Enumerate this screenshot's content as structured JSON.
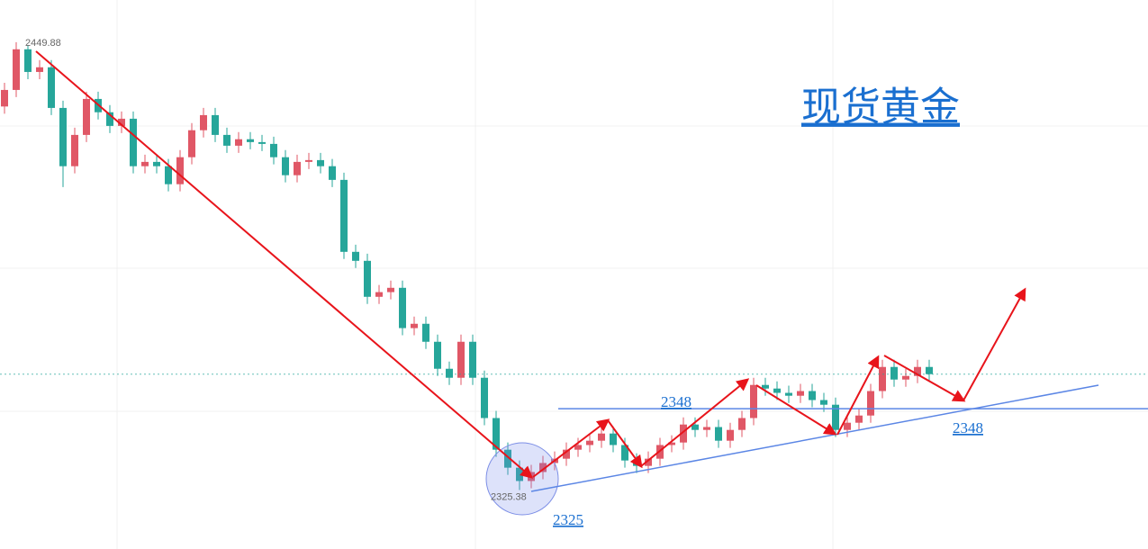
{
  "chart_data": {
    "type": "candlestick",
    "title": "现货黄金",
    "ylim": [
      2309,
      2461.6
    ],
    "up_color": "#e05766",
    "down_color": "#26a69a",
    "open": [
      2432.0,
      2436.6,
      2447.9,
      2441.6,
      2442.9,
      2431.6,
      2415.4,
      2424.1,
      2434.1,
      2430.4,
      2426.6,
      2428.6,
      2415.4,
      2416.6,
      2415.4,
      2410.4,
      2417.9,
      2425.4,
      2429.6,
      2424.1,
      2421.1,
      2422.9,
      2422.1,
      2421.6,
      2417.9,
      2412.9,
      2416.6,
      2417.1,
      2415.4,
      2411.6,
      2391.6,
      2389.1,
      2379.1,
      2380.4,
      2381.6,
      2370.4,
      2371.6,
      2366.6,
      2359.1,
      2356.6,
      2366.6,
      2356.6,
      2345.4,
      2336.6,
      2331.6,
      2327.9,
      2330.4,
      2332.9,
      2334.1,
      2336.6,
      2337.9,
      2339.1,
      2341.1,
      2337.9,
      2333.6,
      2332.1,
      2334.1,
      2337.9,
      2338.6,
      2343.6,
      2342.1,
      2342.9,
      2339.1,
      2342.1,
      2345.4,
      2354.6,
      2353.6,
      2352.4,
      2351.6,
      2352.9,
      2350.4,
      2349.1,
      2342.1,
      2344.1,
      2346.1,
      2352.9,
      2359.6,
      2356.1,
      2357.1,
      2359.6
    ],
    "high": [
      2438.6,
      2449.88,
      2449.0,
      2444.9,
      2444.9,
      2433.6,
      2426.1,
      2436.1,
      2436.1,
      2432.4,
      2430.6,
      2430.6,
      2418.6,
      2418.6,
      2417.4,
      2419.9,
      2427.4,
      2431.6,
      2431.6,
      2426.1,
      2424.9,
      2424.9,
      2424.1,
      2423.6,
      2419.9,
      2418.6,
      2419.1,
      2419.1,
      2417.4,
      2413.6,
      2393.6,
      2391.1,
      2382.4,
      2383.6,
      2383.6,
      2373.6,
      2373.6,
      2368.6,
      2361.1,
      2368.6,
      2368.6,
      2358.6,
      2347.4,
      2338.6,
      2333.6,
      2332.4,
      2334.9,
      2336.1,
      2338.6,
      2339.9,
      2341.1,
      2343.1,
      2343.1,
      2339.9,
      2335.6,
      2336.1,
      2339.9,
      2340.6,
      2345.6,
      2345.6,
      2344.9,
      2344.9,
      2344.1,
      2347.4,
      2356.6,
      2356.6,
      2355.6,
      2354.4,
      2354.9,
      2354.9,
      2352.4,
      2351.1,
      2346.1,
      2348.1,
      2354.9,
      2361.6,
      2361.6,
      2359.1,
      2361.6,
      2361.6
    ],
    "low": [
      2430.0,
      2434.6,
      2439.6,
      2439.6,
      2429.6,
      2409.6,
      2413.4,
      2422.1,
      2428.4,
      2424.6,
      2424.6,
      2413.4,
      2413.4,
      2413.4,
      2408.4,
      2408.4,
      2415.9,
      2423.4,
      2422.1,
      2419.1,
      2419.1,
      2420.1,
      2419.6,
      2415.9,
      2410.9,
      2410.9,
      2414.6,
      2413.4,
      2409.6,
      2389.6,
      2387.1,
      2377.1,
      2377.1,
      2378.4,
      2368.4,
      2368.4,
      2364.6,
      2357.1,
      2354.6,
      2354.6,
      2354.6,
      2343.4,
      2334.6,
      2329.6,
      2325.38,
      2325.9,
      2328.4,
      2330.9,
      2332.1,
      2334.6,
      2335.9,
      2337.1,
      2335.9,
      2331.6,
      2330.1,
      2330.1,
      2332.1,
      2335.9,
      2336.6,
      2340.1,
      2340.1,
      2337.1,
      2337.1,
      2340.1,
      2343.4,
      2351.6,
      2350.4,
      2349.6,
      2349.6,
      2348.4,
      2347.1,
      2340.1,
      2340.1,
      2342.1,
      2344.1,
      2350.9,
      2354.1,
      2354.1,
      2355.1,
      2355.6
    ],
    "close": [
      2436.6,
      2447.9,
      2441.6,
      2442.9,
      2431.6,
      2415.4,
      2424.1,
      2434.1,
      2430.4,
      2426.6,
      2428.6,
      2415.4,
      2416.6,
      2415.4,
      2410.4,
      2417.9,
      2425.4,
      2429.6,
      2424.1,
      2421.1,
      2422.9,
      2422.1,
      2421.6,
      2417.9,
      2412.9,
      2416.6,
      2417.1,
      2415.4,
      2411.6,
      2391.6,
      2389.1,
      2379.1,
      2380.4,
      2381.6,
      2370.4,
      2371.6,
      2366.6,
      2359.1,
      2356.6,
      2366.6,
      2356.6,
      2345.4,
      2336.6,
      2331.6,
      2327.9,
      2330.4,
      2332.9,
      2334.1,
      2336.6,
      2337.9,
      2339.1,
      2341.1,
      2337.9,
      2333.6,
      2332.1,
      2334.1,
      2337.9,
      2338.6,
      2343.6,
      2342.1,
      2342.9,
      2339.1,
      2342.1,
      2345.4,
      2354.6,
      2353.6,
      2352.4,
      2351.6,
      2352.9,
      2350.4,
      2349.1,
      2342.1,
      2344.1,
      2346.1,
      2352.9,
      2359.6,
      2356.1,
      2357.1,
      2359.6,
      2357.6
    ],
    "level": 2348,
    "trend_start": 2325
  }
}
